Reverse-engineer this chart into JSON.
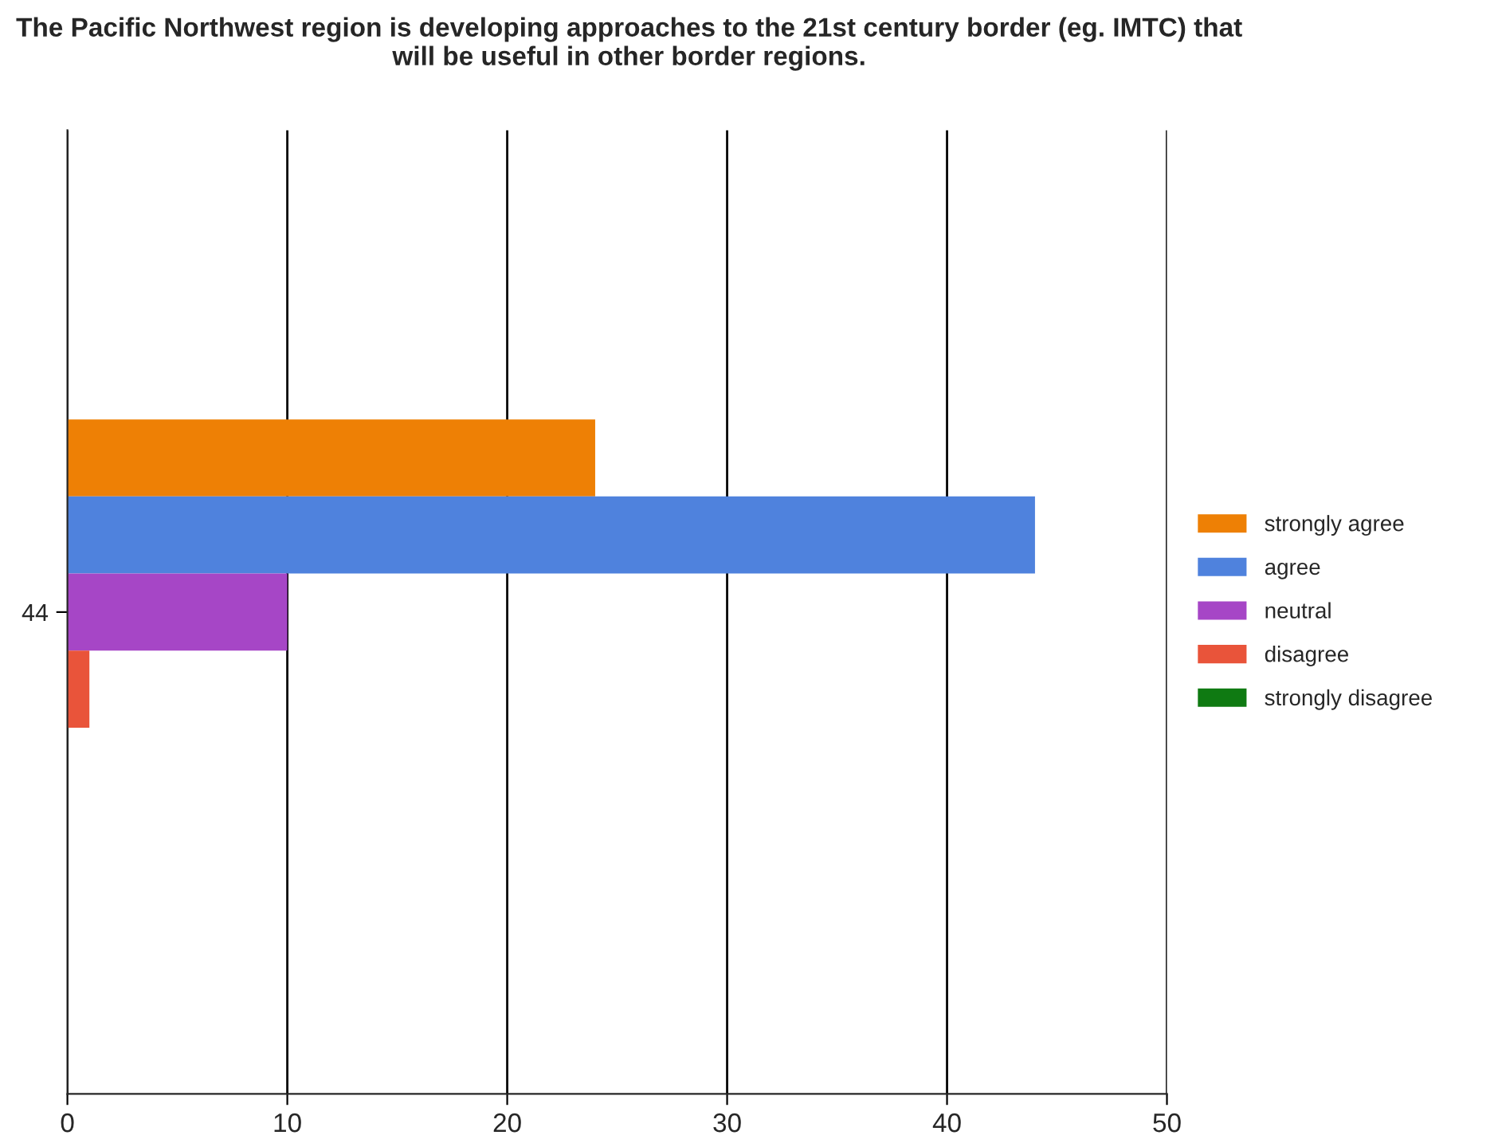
{
  "chart_data": {
    "type": "bar",
    "orientation": "horizontal",
    "title": "The Pacific Northwest region is developing approaches to the 21st century border (eg. IMTC) that will be useful in other border regions.",
    "categories": [
      "44"
    ],
    "series": [
      {
        "name": "strongly agree",
        "color": "#ee8005",
        "values": [
          24
        ]
      },
      {
        "name": "agree",
        "color": "#4f82dd",
        "values": [
          44
        ]
      },
      {
        "name": "neutral",
        "color": "#a646c6",
        "values": [
          10
        ]
      },
      {
        "name": "disagree",
        "color": "#e9543a",
        "values": [
          1
        ]
      },
      {
        "name": "strongly disagree",
        "color": "#0f7a12",
        "values": [
          0
        ]
      }
    ],
    "xlim": [
      0,
      50
    ],
    "xticks": [
      0,
      10,
      20,
      30,
      40,
      50
    ],
    "grid": "x",
    "legend": "right"
  }
}
